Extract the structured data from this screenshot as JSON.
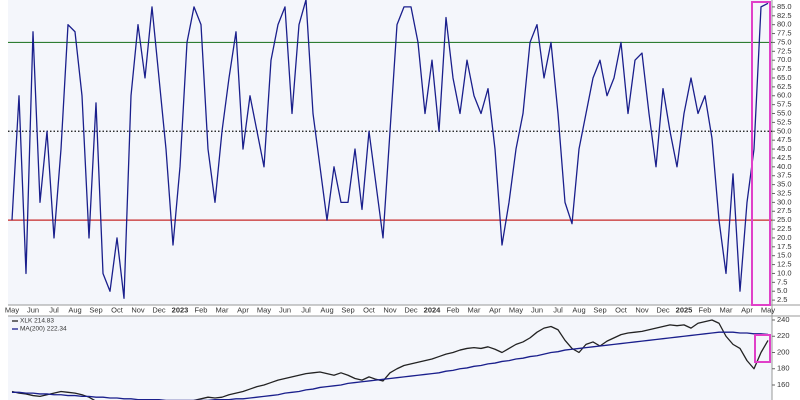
{
  "chart_data": [
    {
      "type": "line",
      "color": "#1a1f8c",
      "categories": [
        "May",
        null,
        null,
        "Jun",
        null,
        null,
        "Jul",
        null,
        null,
        "Aug",
        null,
        null,
        "Sep",
        null,
        null,
        "Oct",
        null,
        null,
        "Nov",
        null,
        null,
        "Dec",
        null,
        null,
        "2023",
        null,
        null,
        "Feb",
        null,
        null,
        "Mar",
        null,
        null,
        "Apr",
        null,
        null,
        "May",
        null,
        null,
        "Jun",
        null,
        null,
        "Jul",
        null,
        null,
        "Aug",
        null,
        null,
        "Sep",
        null,
        null,
        "Oct",
        null,
        null,
        "Nov",
        null,
        null,
        "Dec",
        null,
        null,
        "2024",
        null,
        null,
        "Feb",
        null,
        null,
        "Mar",
        null,
        null,
        "Apr",
        null,
        null,
        "May",
        null,
        null,
        "Jun",
        null,
        null,
        "Jul",
        null,
        null,
        "Aug",
        null,
        null,
        "Sep",
        null,
        null,
        "Oct",
        null,
        null,
        "Nov",
        null,
        null,
        "Dec",
        null,
        null,
        "2025",
        null,
        null,
        "Feb",
        null,
        null,
        "Mar",
        null,
        null,
        "Apr",
        null,
        null,
        "May"
      ],
      "values": [
        25,
        60,
        10,
        78,
        30,
        50,
        20,
        45,
        80,
        78,
        60,
        20,
        58,
        10,
        5,
        20,
        3,
        60,
        80,
        65,
        85,
        65,
        45,
        18,
        40,
        75,
        85,
        80,
        45,
        30,
        50,
        65,
        78,
        45,
        60,
        50,
        40,
        70,
        80,
        85,
        55,
        80,
        87,
        55,
        40,
        25,
        40,
        30,
        30,
        45,
        28,
        50,
        35,
        20,
        50,
        80,
        85,
        85,
        75,
        55,
        70,
        50,
        82,
        65,
        55,
        70,
        60,
        55,
        62,
        45,
        18,
        30,
        45,
        55,
        75,
        80,
        65,
        75,
        55,
        30,
        24,
        45,
        55,
        65,
        70,
        60,
        65,
        75,
        55,
        70,
        72,
        55,
        40,
        62,
        50,
        40,
        55,
        65,
        55,
        60,
        48,
        25,
        10,
        38,
        5,
        30,
        45,
        85,
        86
      ],
      "ylim": [
        0,
        87.5
      ],
      "yticks": [
        {
          "value": 85,
          "label": "85.0"
        },
        82.5,
        {
          "value": 80,
          "label": "80.0"
        },
        77.5,
        {
          "value": 75,
          "label": "75.0"
        },
        72.5,
        {
          "value": 70,
          "label": "70.0"
        },
        67.5,
        {
          "value": 65,
          "label": "65.0"
        },
        62.5,
        {
          "value": 60,
          "label": "60.0"
        },
        57.5,
        {
          "value": 55,
          "label": "55.0"
        },
        52.5,
        {
          "value": 50,
          "label": "50.0"
        },
        47.5,
        {
          "value": 45,
          "label": "45.0"
        },
        42.5,
        {
          "value": 40,
          "label": "40.0"
        },
        37.5,
        {
          "value": 35,
          "label": "35.0"
        },
        32.5,
        {
          "value": 30,
          "label": "30.0"
        },
        27.5,
        {
          "value": 25,
          "label": "25.0"
        },
        22.5,
        {
          "value": 20,
          "label": "20.0"
        },
        17.5,
        {
          "value": 15,
          "label": "15.0"
        },
        12.5,
        {
          "value": 10,
          "label": "10.0"
        },
        7.5,
        {
          "value": 5,
          "label": "5.0"
        },
        2.5
      ],
      "reference_lines": [
        {
          "value": 75,
          "color": "#2e7d32",
          "style": "solid"
        },
        {
          "value": 50,
          "color": "#111111",
          "style": "dotted"
        },
        {
          "value": 25,
          "color": "#c62828",
          "style": "solid"
        }
      ]
    },
    {
      "type": "line",
      "series": [
        {
          "name": "XLK 214.83",
          "color": "#222222",
          "values": [
            152,
            150,
            149,
            147,
            146,
            148,
            150,
            152,
            151,
            150,
            148,
            145,
            140,
            135,
            132,
            128,
            130,
            135,
            138,
            140,
            140,
            138,
            136,
            134,
            136,
            138,
            141,
            143,
            145,
            144,
            145,
            148,
            150,
            152,
            155,
            158,
            160,
            163,
            166,
            168,
            170,
            172,
            174,
            175,
            176,
            174,
            172,
            175,
            172,
            168,
            166,
            170,
            167,
            165,
            175,
            180,
            184,
            186,
            188,
            190,
            192,
            195,
            198,
            200,
            203,
            205,
            206,
            205,
            207,
            204,
            200,
            205,
            210,
            213,
            218,
            225,
            230,
            232,
            228,
            215,
            205,
            200,
            210,
            213,
            208,
            214,
            218,
            222,
            224,
            225,
            226,
            228,
            230,
            232,
            234,
            233,
            234,
            230,
            236,
            238,
            240,
            236,
            220,
            210,
            205,
            190,
            180,
            200,
            214.83
          ]
        },
        {
          "name": "MA(200) 222.34",
          "color": "#1a1f8c",
          "values": [
            151,
            151,
            150,
            150,
            149,
            149,
            148,
            148,
            147,
            147,
            146,
            146,
            145,
            145,
            144,
            144,
            143,
            143,
            142,
            142,
            142,
            142,
            141,
            141,
            141,
            141,
            141,
            141,
            141,
            142,
            142,
            142,
            143,
            143,
            144,
            145,
            146,
            147,
            148,
            150,
            151,
            152,
            154,
            155,
            157,
            158,
            159,
            160,
            162,
            163,
            164,
            165,
            166,
            167,
            168,
            169,
            170,
            171,
            172,
            173,
            174,
            175,
            177,
            178,
            180,
            181,
            183,
            184,
            186,
            187,
            189,
            190,
            192,
            193,
            195,
            196,
            198,
            200,
            201,
            203,
            204,
            205,
            206,
            207,
            208,
            209,
            210,
            211,
            212,
            213,
            214,
            215,
            216,
            217,
            218,
            219,
            220,
            221,
            222,
            223,
            224,
            225,
            225,
            225,
            224,
            224,
            223,
            223,
            222.34
          ]
        }
      ],
      "ylim": [
        140,
        250
      ],
      "yticks": [
        160,
        180,
        200,
        220,
        240
      ]
    }
  ]
}
